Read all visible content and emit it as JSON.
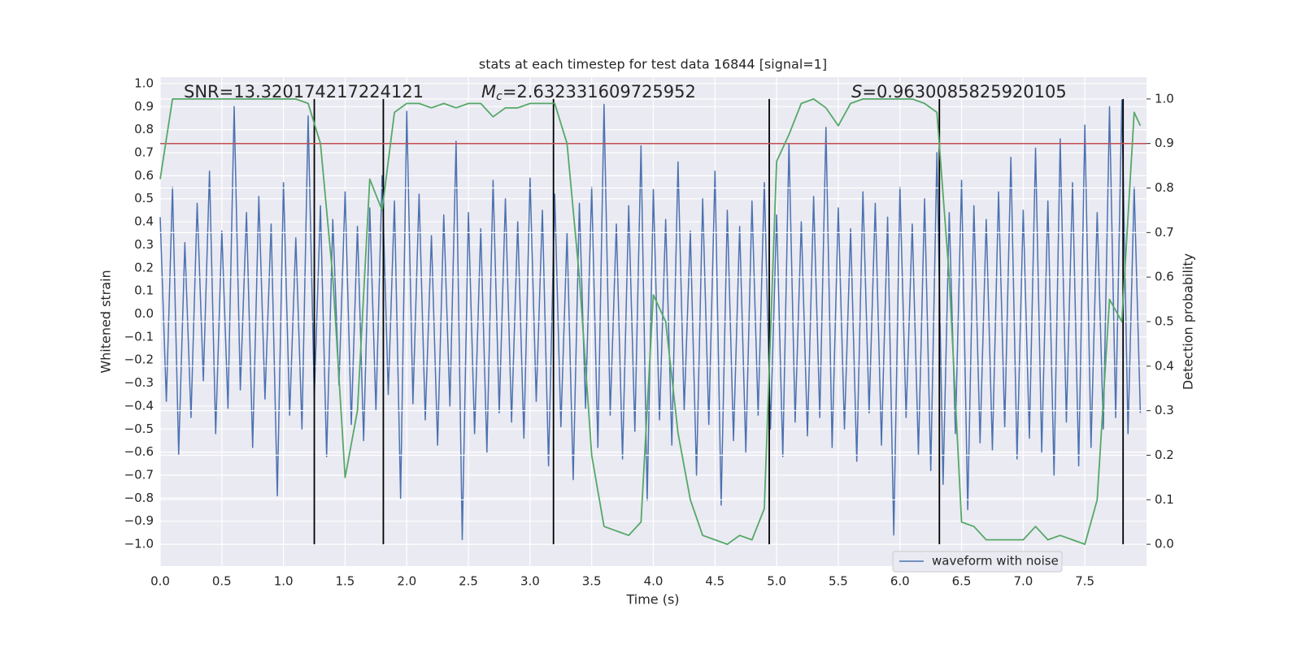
{
  "chart_data": {
    "type": "line",
    "title": "stats at each timestep for test data 16844 [signal=1]",
    "xlabel": "Time (s)",
    "ylabel": "Whitened strain",
    "y2label": "Detection probability",
    "annotations": [
      {
        "text": "SNR=13.320174217224121"
      },
      {
        "symbol": "M",
        "subscript": "c",
        "text": "=2.632331609725952"
      },
      {
        "symbol": "S",
        "text": "=0.9630085825920105"
      }
    ],
    "xlim": [
      0,
      8.0
    ],
    "ylim": [
      -1.095,
      1.028
    ],
    "y2lim": [
      -0.049,
      1.049
    ],
    "xticks": [
      {
        "value": 0,
        "label": "0.0"
      },
      {
        "value": 0.5,
        "label": "0.5"
      },
      {
        "value": 1,
        "label": "1.0"
      },
      {
        "value": 1.5,
        "label": "1.5"
      },
      {
        "value": 2,
        "label": "2.0"
      },
      {
        "value": 2.5,
        "label": "2.5"
      },
      {
        "value": 3,
        "label": "3.0"
      },
      {
        "value": 3.5,
        "label": "3.5"
      },
      {
        "value": 4,
        "label": "4.0"
      },
      {
        "value": 4.5,
        "label": "4.5"
      },
      {
        "value": 5,
        "label": "5.0"
      },
      {
        "value": 5.5,
        "label": "5.5"
      },
      {
        "value": 6,
        "label": "6.0"
      },
      {
        "value": 6.5,
        "label": "6.5"
      },
      {
        "value": 7,
        "label": "7.0"
      },
      {
        "value": 7.5,
        "label": "7.5"
      }
    ],
    "yticks": [
      {
        "value": -1,
        "label": "−1.0"
      },
      {
        "value": -0.9,
        "label": "−0.9"
      },
      {
        "value": -0.8,
        "label": "−0.8"
      },
      {
        "value": -0.7,
        "label": "−0.7"
      },
      {
        "value": -0.6,
        "label": "−0.6"
      },
      {
        "value": -0.5,
        "label": "−0.5"
      },
      {
        "value": -0.4,
        "label": "−0.4"
      },
      {
        "value": -0.3,
        "label": "−0.3"
      },
      {
        "value": -0.2,
        "label": "−0.2"
      },
      {
        "value": -0.1,
        "label": "−0.1"
      },
      {
        "value": 0,
        "label": "0.0"
      },
      {
        "value": 0.1,
        "label": "0.1"
      },
      {
        "value": 0.2,
        "label": "0.2"
      },
      {
        "value": 0.3,
        "label": "0.3"
      },
      {
        "value": 0.4,
        "label": "0.4"
      },
      {
        "value": 0.5,
        "label": "0.5"
      },
      {
        "value": 0.6,
        "label": "0.6"
      },
      {
        "value": 0.7,
        "label": "0.7"
      },
      {
        "value": 0.8,
        "label": "0.8"
      },
      {
        "value": 0.9,
        "label": "0.9"
      },
      {
        "value": 1,
        "label": "1.0"
      }
    ],
    "y2ticks": [
      {
        "value": 0,
        "label": "0.0"
      },
      {
        "value": 0.1,
        "label": "0.1"
      },
      {
        "value": 0.2,
        "label": "0.2"
      },
      {
        "value": 0.3,
        "label": "0.3"
      },
      {
        "value": 0.4,
        "label": "0.4"
      },
      {
        "value": 0.5,
        "label": "0.5"
      },
      {
        "value": 0.6,
        "label": "0.6"
      },
      {
        "value": 0.7,
        "label": "0.7"
      },
      {
        "value": 0.8,
        "label": "0.8"
      },
      {
        "value": 0.9,
        "label": "0.9"
      },
      {
        "value": 1,
        "label": "1.0"
      }
    ],
    "grid": true,
    "legend": "lower right",
    "series": [
      {
        "name": "waveform with noise",
        "color": "#4c72b0",
        "x": [
          0,
          0.05,
          0.1,
          0.15,
          0.2,
          0.25,
          0.3,
          0.35,
          0.4,
          0.45,
          0.5,
          0.55,
          0.6,
          0.65,
          0.7,
          0.75,
          0.8,
          0.85,
          0.9,
          0.95,
          1,
          1.05,
          1.1,
          1.15,
          1.2,
          1.25,
          1.3,
          1.35,
          1.4,
          1.45,
          1.5,
          1.55,
          1.6,
          1.65,
          1.7,
          1.75,
          1.8,
          1.85,
          1.9,
          1.95,
          2,
          2.05,
          2.1,
          2.15,
          2.2,
          2.25,
          2.3,
          2.35,
          2.4,
          2.45,
          2.5,
          2.55,
          2.6,
          2.65,
          2.7,
          2.75,
          2.8,
          2.85,
          2.9,
          2.95,
          3,
          3.05,
          3.1,
          3.15,
          3.2,
          3.25,
          3.3,
          3.35,
          3.4,
          3.45,
          3.5,
          3.55,
          3.6,
          3.65,
          3.7,
          3.75,
          3.8,
          3.85,
          3.9,
          3.95,
          4,
          4.05,
          4.1,
          4.15,
          4.2,
          4.25,
          4.3,
          4.35,
          4.4,
          4.45,
          4.5,
          4.55,
          4.6,
          4.65,
          4.7,
          4.75,
          4.8,
          4.85,
          4.9,
          4.95,
          5,
          5.05,
          5.1,
          5.15,
          5.2,
          5.25,
          5.3,
          5.35,
          5.4,
          5.45,
          5.5,
          5.55,
          5.6,
          5.65,
          5.7,
          5.75,
          5.8,
          5.85,
          5.9,
          5.95,
          6,
          6.05,
          6.1,
          6.15,
          6.2,
          6.25,
          6.3,
          6.35,
          6.4,
          6.45,
          6.5,
          6.55,
          6.6,
          6.65,
          6.7,
          6.75,
          6.8,
          6.85,
          6.9,
          6.95,
          7,
          7.05,
          7.1,
          7.15,
          7.2,
          7.25,
          7.3,
          7.35,
          7.4,
          7.45,
          7.5,
          7.55,
          7.6,
          7.65,
          7.7,
          7.75,
          7.8,
          7.85,
          7.9,
          7.95
        ],
        "values": [
          0.42,
          -0.38,
          0.55,
          -0.61,
          0.31,
          -0.45,
          0.48,
          -0.29,
          0.62,
          -0.52,
          0.36,
          -0.41,
          0.9,
          -0.33,
          0.44,
          -0.58,
          0.51,
          -0.37,
          0.39,
          -0.79,
          0.57,
          -0.44,
          0.33,
          -0.5,
          0.86,
          -0.36,
          0.47,
          -0.62,
          0.41,
          -0.31,
          0.53,
          -0.48,
          0.38,
          -0.55,
          0.46,
          -0.42,
          0.6,
          -0.35,
          0.49,
          -0.8,
          0.88,
          -0.39,
          0.52,
          -0.46,
          0.34,
          -0.57,
          0.43,
          -0.4,
          0.75,
          -0.98,
          0.44,
          -0.52,
          0.37,
          -0.6,
          0.58,
          -0.43,
          0.5,
          -0.47,
          0.4,
          -0.54,
          0.59,
          -0.38,
          0.45,
          -0.66,
          0.52,
          -0.49,
          0.35,
          -0.72,
          0.48,
          -0.41,
          0.55,
          -0.58,
          0.91,
          -0.44,
          0.39,
          -0.63,
          0.47,
          -0.51,
          0.73,
          -0.81,
          0.54,
          -0.46,
          0.41,
          -0.57,
          0.66,
          -0.42,
          0.36,
          -0.7,
          0.5,
          -0.48,
          0.62,
          -0.83,
          0.45,
          -0.55,
          0.38,
          -0.6,
          0.49,
          -0.44,
          0.57,
          -0.5,
          0.43,
          -0.62,
          0.74,
          -0.47,
          0.4,
          -0.53,
          0.51,
          -0.45,
          0.81,
          -0.58,
          0.46,
          -0.5,
          0.37,
          -0.64,
          0.53,
          -0.43,
          0.48,
          -0.57,
          0.42,
          -0.96,
          0.55,
          -0.45,
          0.39,
          -0.61,
          0.5,
          -0.68,
          0.7,
          -0.74,
          0.44,
          -0.52,
          0.58,
          -0.85,
          0.47,
          -0.56,
          0.41,
          -0.59,
          0.53,
          -0.49,
          0.68,
          -0.63,
          0.45,
          -0.54,
          0.72,
          -0.6,
          0.49,
          -0.7,
          0.76,
          -0.47,
          0.57,
          -0.66,
          0.82,
          -0.58,
          0.44,
          -0.5,
          0.9,
          -0.45,
          0.93,
          -0.52,
          0.55,
          -0.43
        ]
      },
      {
        "color": "#55a868",
        "axis": "y2",
        "x": [
          0,
          0.1,
          0.2,
          0.3,
          0.4,
          0.5,
          0.6,
          0.7,
          0.8,
          0.9,
          1,
          1.1,
          1.2,
          1.3,
          1.4,
          1.5,
          1.6,
          1.7,
          1.8,
          1.9,
          2,
          2.1,
          2.2,
          2.3,
          2.4,
          2.5,
          2.6,
          2.7,
          2.8,
          2.9,
          3,
          3.1,
          3.2,
          3.3,
          3.4,
          3.5,
          3.6,
          3.7,
          3.8,
          3.9,
          4,
          4.1,
          4.2,
          4.3,
          4.4,
          4.5,
          4.6,
          4.7,
          4.8,
          4.9,
          5,
          5.1,
          5.2,
          5.3,
          5.4,
          5.5,
          5.6,
          5.7,
          5.8,
          5.9,
          6,
          6.1,
          6.2,
          6.3,
          6.4,
          6.5,
          6.6,
          6.7,
          6.8,
          6.9,
          7,
          7.1,
          7.2,
          7.3,
          7.4,
          7.5,
          7.6,
          7.7,
          7.8,
          7.9,
          7.95
        ],
        "values": [
          0.82,
          1.0,
          1.0,
          1.0,
          1.0,
          1.0,
          1.0,
          1.0,
          1.0,
          1.0,
          1.0,
          1.0,
          0.99,
          0.9,
          0.6,
          0.15,
          0.3,
          0.82,
          0.75,
          0.97,
          0.99,
          0.99,
          0.98,
          0.99,
          0.98,
          0.99,
          0.99,
          0.96,
          0.98,
          0.98,
          0.99,
          0.99,
          0.99,
          0.9,
          0.6,
          0.2,
          0.04,
          0.03,
          0.02,
          0.05,
          0.56,
          0.5,
          0.25,
          0.1,
          0.02,
          0.01,
          0.0,
          0.02,
          0.01,
          0.08,
          0.86,
          0.92,
          0.99,
          1.0,
          0.98,
          0.94,
          0.99,
          1.0,
          1.0,
          1.0,
          1.0,
          1.0,
          0.99,
          0.97,
          0.6,
          0.05,
          0.04,
          0.01,
          0.01,
          0.01,
          0.01,
          0.04,
          0.01,
          0.02,
          0.01,
          0.0,
          0.1,
          0.55,
          0.5,
          0.97,
          0.94
        ]
      }
    ],
    "vlines": [
      1.25,
      1.81,
      3.19,
      4.94,
      6.32,
      7.81
    ],
    "vline_color": "#000000",
    "threshold": 0.9,
    "threshold_color": "#c44e52"
  }
}
